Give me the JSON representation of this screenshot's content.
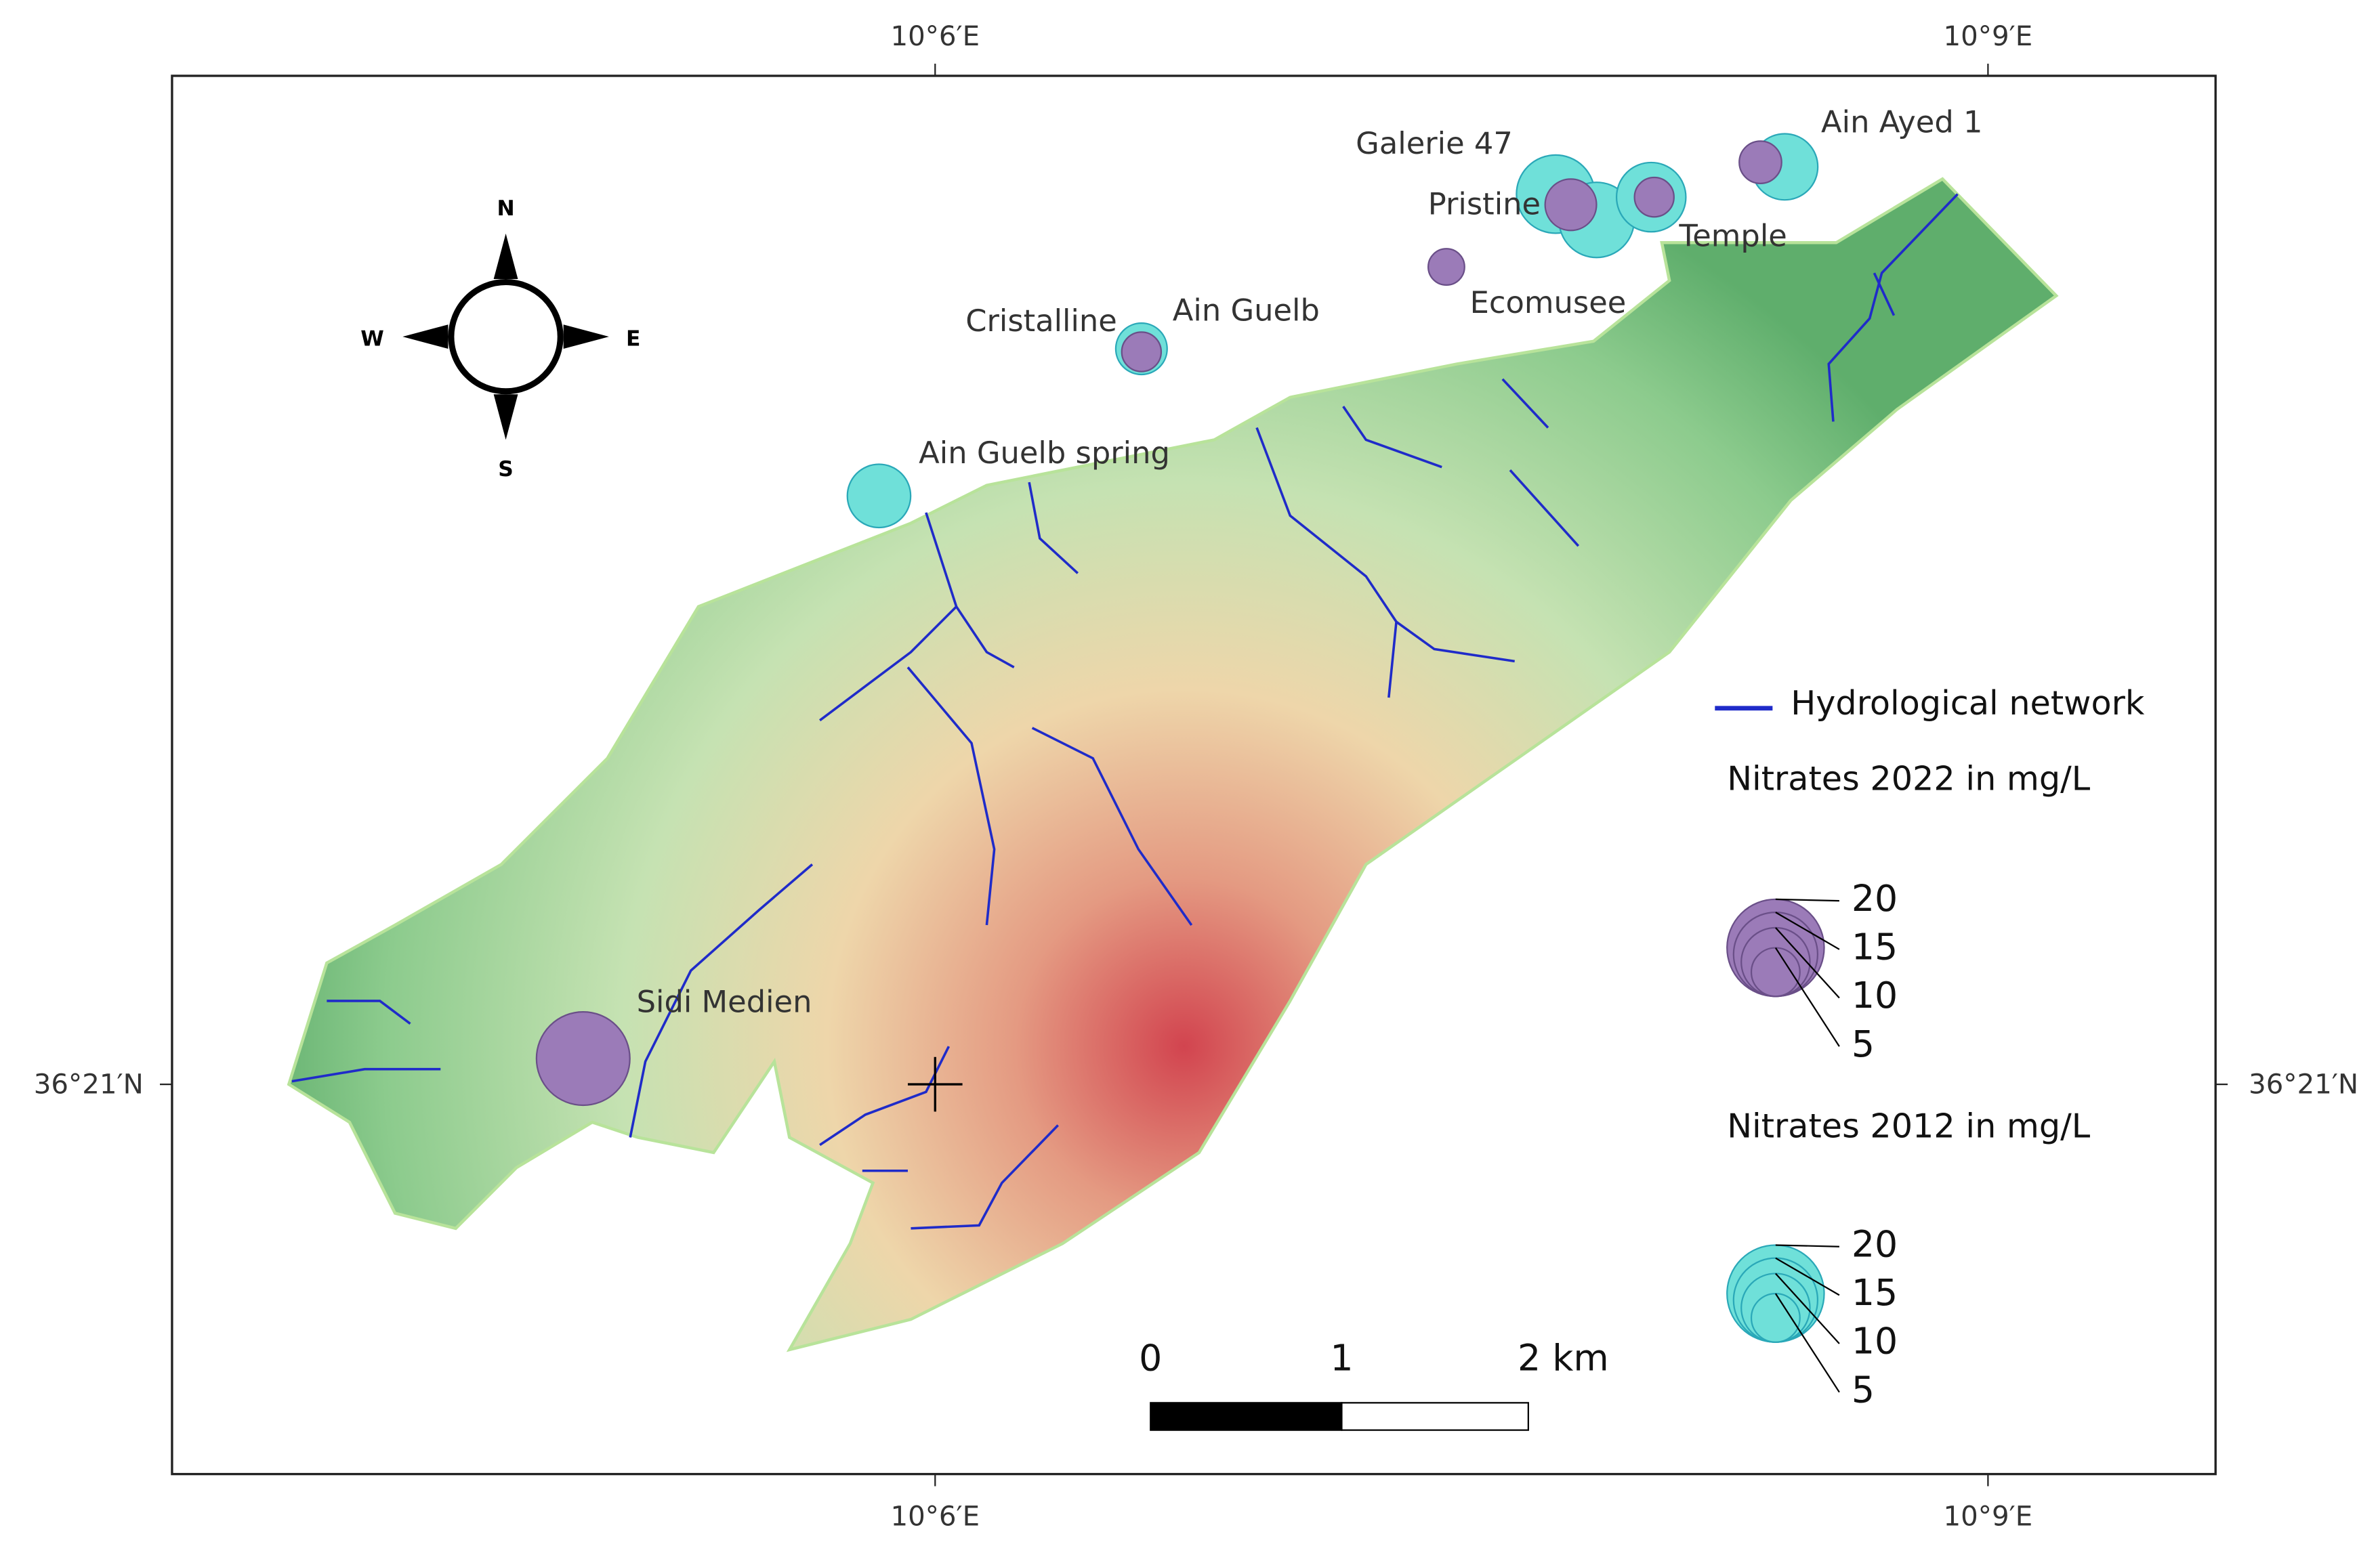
{
  "map": {
    "coordinates": {
      "top": [
        "10°6′E",
        "10°9′E"
      ],
      "bottom": [
        "10°6′E",
        "10°9′E"
      ],
      "left": "36°21′N",
      "right": "36°21′N"
    },
    "compass": {
      "n": "N",
      "s": "S",
      "e": "E",
      "w": "W"
    },
    "sites": [
      {
        "name": "Ain Ayed 1",
        "nitrates_2012": 9.3,
        "nitrates_2022": 3.8
      },
      {
        "name": "Galerie 47",
        "nitrates_2012": 13,
        "nitrates_2022": null
      },
      {
        "name": "Pristine",
        "nitrates_2012": 12,
        "nitrates_2022": 5.6
      },
      {
        "name": "Temple",
        "nitrates_2012": 10.2,
        "nitrates_2022": 3.3
      },
      {
        "name": "Ecomusee",
        "nitrates_2012": null,
        "nitrates_2022": 2.8
      },
      {
        "name": "Cristalline",
        "nitrates_2012": 5.6,
        "nitrates_2022": null
      },
      {
        "name": "Ain Guelb",
        "nitrates_2012": null,
        "nitrates_2022": 3.3
      },
      {
        "name": "Ain Guelb spring",
        "nitrates_2012": 8.5,
        "nitrates_2022": null
      },
      {
        "name": "Sidi Medien",
        "nitrates_2012": null,
        "nitrates_2022": 18.5
      }
    ],
    "legend": {
      "river": "Hydrological network",
      "title_2022": "Nitrates 2022 in mg/L",
      "title_2012": "Nitrates 2012 in mg/L",
      "sizes": [
        20,
        15,
        10,
        5
      ],
      "color_2022": "#9b7bb8",
      "color_2012": "#6fe0d9"
    },
    "scale_bar": [
      "0",
      "1",
      "2 km"
    ]
  }
}
